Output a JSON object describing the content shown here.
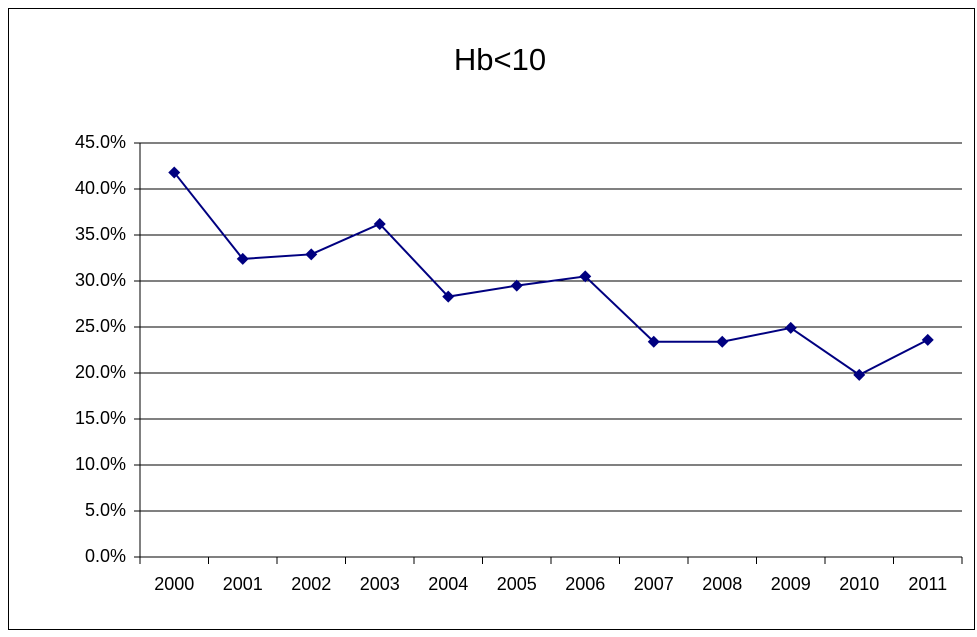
{
  "chart_data": {
    "type": "line",
    "title": "Hb<10",
    "categories": [
      "2000",
      "2001",
      "2002",
      "2003",
      "2004",
      "2005",
      "2006",
      "2007",
      "2008",
      "2009",
      "2010",
      "2011"
    ],
    "series": [
      {
        "color": "#000080",
        "values": [
          41.8,
          32.4,
          32.9,
          36.2,
          28.3,
          29.5,
          30.5,
          23.4,
          23.4,
          24.9,
          19.8,
          23.6
        ]
      }
    ],
    "ylim": [
      0,
      45
    ],
    "yticks": [
      {
        "value": 0,
        "label": "0.0%"
      },
      {
        "value": 5,
        "label": "5.0%"
      },
      {
        "value": 10,
        "label": "10.0%"
      },
      {
        "value": 15,
        "label": "15.0%"
      },
      {
        "value": 20,
        "label": "20.0%"
      },
      {
        "value": 25,
        "label": "25.0%"
      },
      {
        "value": 30,
        "label": "30.0%"
      },
      {
        "value": 35,
        "label": "35.0%"
      },
      {
        "value": 40,
        "label": "40.0%"
      },
      {
        "value": 45,
        "label": "45.0%"
      }
    ],
    "grid": true
  }
}
